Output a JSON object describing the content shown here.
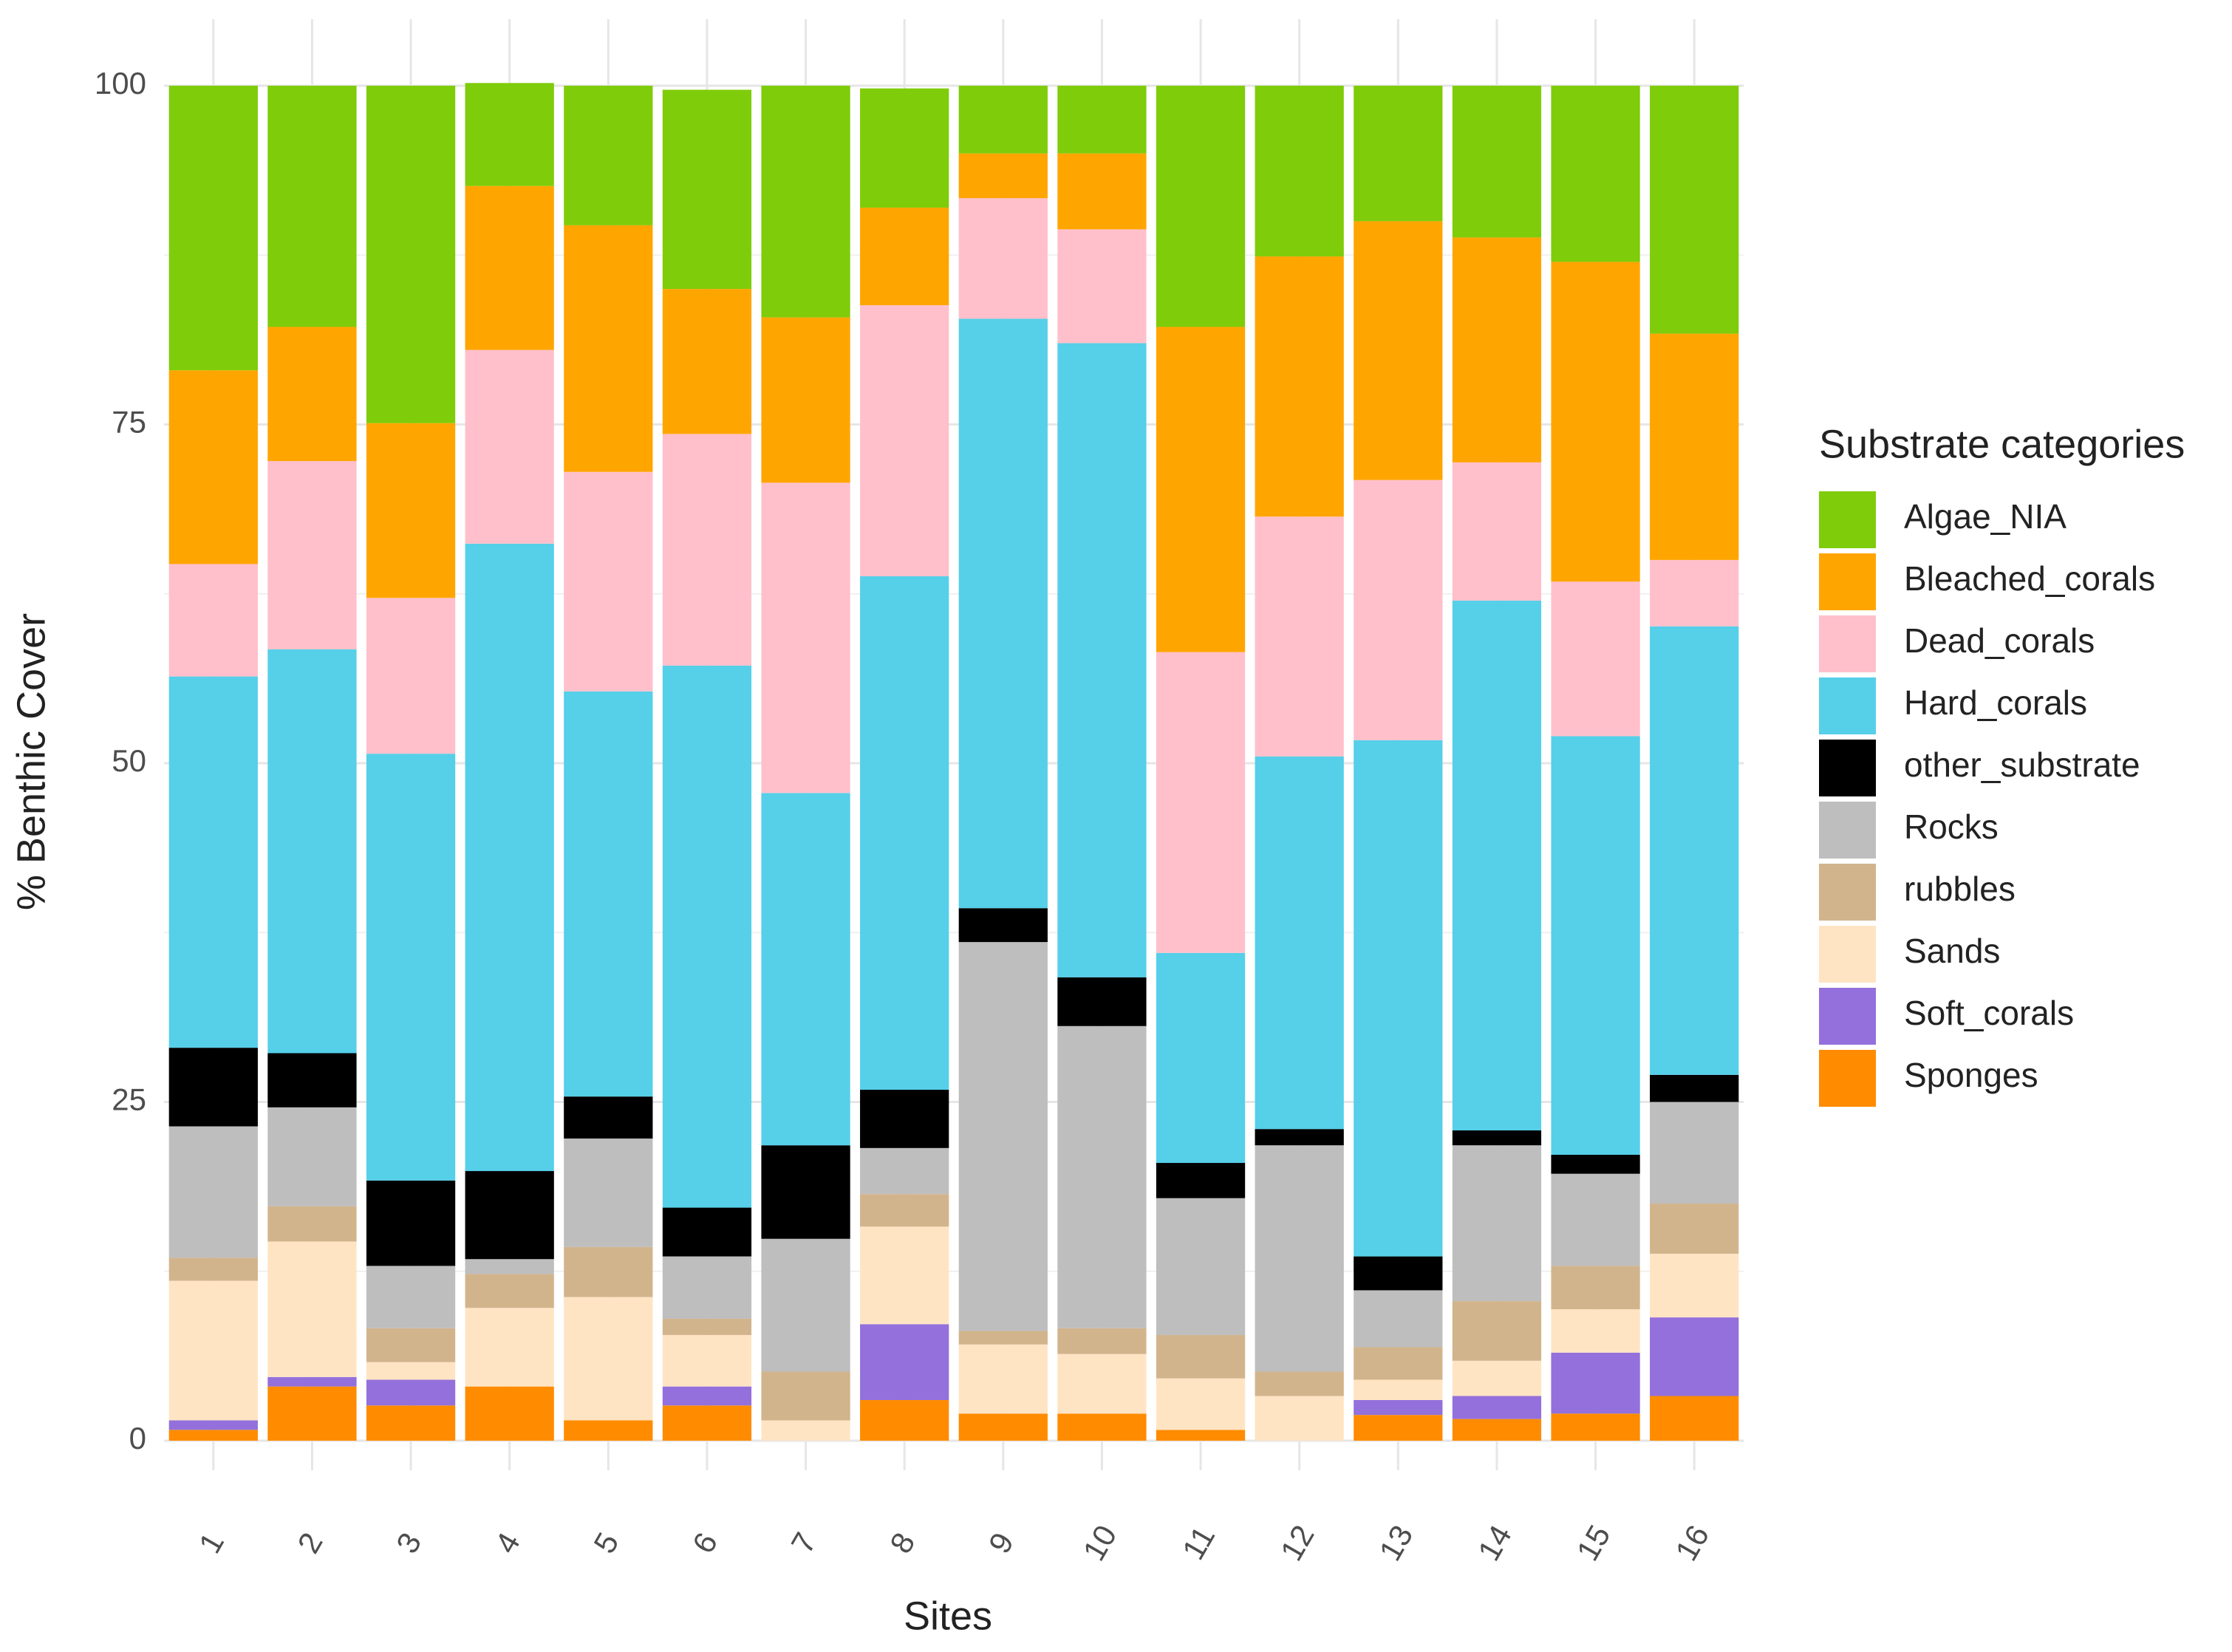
{
  "chart_data": {
    "type": "stacked_bar",
    "x_label": "Sites",
    "y_label": "% Benthic Cover",
    "legend_title": "Substrate categories",
    "legend_position": "right",
    "grid": true,
    "categories": [
      "1",
      "2",
      "3",
      "4",
      "5",
      "6",
      "7",
      "8",
      "9",
      "10",
      "11",
      "12",
      "13",
      "14",
      "15",
      "16"
    ],
    "ylim": [
      0,
      100
    ],
    "yticks": [
      0,
      25,
      50,
      75,
      100
    ],
    "series": [
      {
        "name": "Algae_NIA",
        "color": "#7fcc0a",
        "values": [
          21.0,
          17.8,
          24.9,
          7.6,
          10.3,
          14.7,
          17.1,
          8.8,
          5.0,
          5.0,
          17.8,
          12.6,
          10.0,
          11.2,
          13.0,
          18.3
        ]
      },
      {
        "name": "Bleached_corals",
        "color": "#ffa500",
        "values": [
          14.3,
          9.9,
          12.9,
          12.1,
          18.2,
          10.7,
          12.2,
          7.2,
          3.3,
          5.6,
          24.0,
          19.2,
          19.1,
          16.6,
          23.6,
          16.7
        ]
      },
      {
        "name": "Dead_corals",
        "color": "#ffc0cb",
        "values": [
          8.3,
          13.9,
          11.5,
          14.3,
          16.2,
          17.1,
          22.9,
          20.0,
          8.9,
          8.4,
          22.2,
          17.7,
          19.2,
          10.2,
          11.4,
          4.9
        ]
      },
      {
        "name": "Hard_corals",
        "color": "#56cfe9",
        "values": [
          27.4,
          29.8,
          31.5,
          46.3,
          29.9,
          40.0,
          26.0,
          37.9,
          43.5,
          46.8,
          15.5,
          27.5,
          38.1,
          39.1,
          30.9,
          33.1
        ]
      },
      {
        "name": "other_substrate",
        "color": "#000000",
        "values": [
          5.8,
          4.0,
          6.3,
          6.5,
          3.1,
          3.6,
          6.9,
          4.3,
          2.5,
          3.6,
          2.6,
          1.2,
          2.5,
          1.1,
          1.4,
          2.0
        ]
      },
      {
        "name": "Rocks",
        "color": "#bebebe",
        "values": [
          9.7,
          7.3,
          4.6,
          1.1,
          8.0,
          4.6,
          9.8,
          3.4,
          28.7,
          22.3,
          10.1,
          16.7,
          4.2,
          11.5,
          6.8,
          7.5
        ]
      },
      {
        "name": "rubbles",
        "color": "#d2b48c",
        "values": [
          1.7,
          2.6,
          2.5,
          2.5,
          3.7,
          1.2,
          3.6,
          2.4,
          1.0,
          1.9,
          3.2,
          1.8,
          2.4,
          4.4,
          3.2,
          3.7
        ]
      },
      {
        "name": "Sands",
        "color": "#ffe4c4",
        "values": [
          10.3,
          10.0,
          1.3,
          5.8,
          9.1,
          3.8,
          1.5,
          7.2,
          5.1,
          4.4,
          3.8,
          3.3,
          1.5,
          2.6,
          3.2,
          4.7
        ]
      },
      {
        "name": "Soft_corals",
        "color": "#9370db",
        "values": [
          0.7,
          0.7,
          1.9,
          0,
          0,
          1.4,
          0,
          5.6,
          0,
          0,
          0,
          0,
          1.1,
          1.7,
          4.5,
          5.8
        ]
      },
      {
        "name": "Sponges",
        "color": "#ff8c00",
        "values": [
          0.8,
          4.0,
          2.6,
          4.0,
          1.5,
          2.6,
          0,
          3.0,
          2.0,
          2.0,
          0.8,
          0,
          1.9,
          1.6,
          2.0,
          3.3
        ]
      }
    ]
  }
}
